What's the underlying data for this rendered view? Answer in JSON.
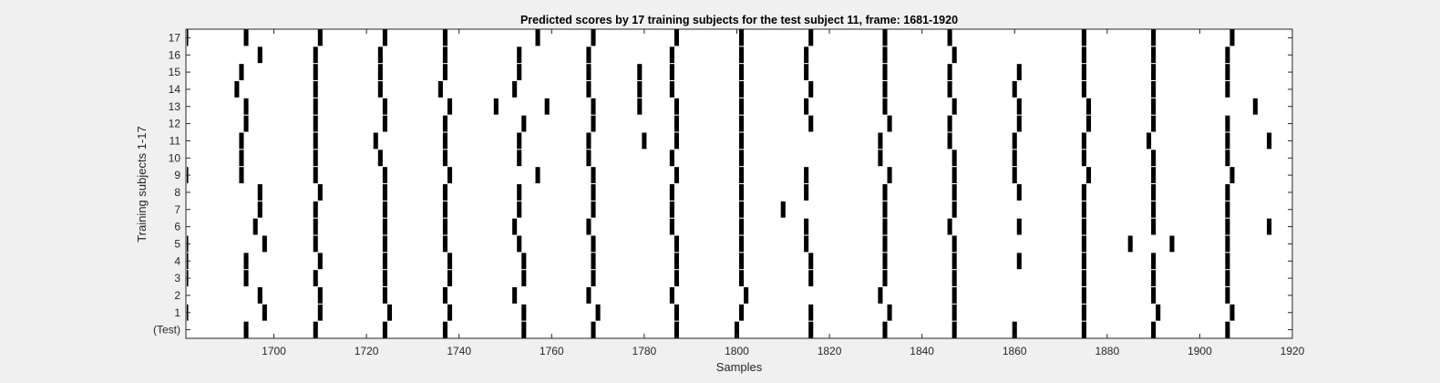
{
  "chart_data": {
    "type": "event-raster",
    "title": "Predicted scores by 17 training subjects for the test subject 11, frame: 1681-1920",
    "xlabel": "Samples",
    "ylabel": "Training subjects 1-17",
    "xlim": [
      1681,
      1920
    ],
    "xticks": [
      1700,
      1720,
      1740,
      1760,
      1780,
      1800,
      1820,
      1840,
      1860,
      1880,
      1900,
      1920
    ],
    "rows": [
      "(Test)",
      "1",
      "2",
      "3",
      "4",
      "5",
      "6",
      "7",
      "8",
      "9",
      "10",
      "11",
      "12",
      "13",
      "14",
      "15",
      "16",
      "17"
    ],
    "grid": false,
    "background": "#f0f0f0",
    "plot_background": "#ffffff",
    "mark_color": "#000000",
    "series": [
      {
        "row": "(Test)",
        "x": [
          1694,
          1709,
          1724,
          1737,
          1754,
          1769,
          1787,
          1800,
          1816,
          1832,
          1847,
          1860,
          1875,
          1890,
          1906
        ]
      },
      {
        "row": "1",
        "x": [
          1681,
          1698,
          1710,
          1725,
          1738,
          1754,
          1770,
          1787,
          1801,
          1816,
          1833,
          1847,
          1875,
          1891,
          1907
        ]
      },
      {
        "row": "2",
        "x": [
          1697,
          1710,
          1724,
          1737,
          1752,
          1768,
          1786,
          1802,
          1831,
          1847,
          1875,
          1890,
          1906
        ]
      },
      {
        "row": "3",
        "x": [
          1681,
          1694,
          1709,
          1724,
          1738,
          1754,
          1769,
          1787,
          1801,
          1816,
          1832,
          1847,
          1875,
          1890,
          1906
        ]
      },
      {
        "row": "4",
        "x": [
          1681,
          1694,
          1710,
          1724,
          1738,
          1754,
          1769,
          1787,
          1801,
          1816,
          1832,
          1847,
          1861,
          1875,
          1890,
          1906
        ]
      },
      {
        "row": "5",
        "x": [
          1681,
          1698,
          1709,
          1724,
          1737,
          1753,
          1769,
          1787,
          1801,
          1815,
          1832,
          1847,
          1875,
          1885,
          1894,
          1906
        ]
      },
      {
        "row": "6",
        "x": [
          1696,
          1709,
          1724,
          1737,
          1752,
          1768,
          1786,
          1801,
          1815,
          1832,
          1846,
          1861,
          1875,
          1890,
          1906,
          1915
        ]
      },
      {
        "row": "7",
        "x": [
          1697,
          1709,
          1724,
          1737,
          1753,
          1769,
          1786,
          1801,
          1810,
          1832,
          1847,
          1875,
          1890,
          1906
        ]
      },
      {
        "row": "8",
        "x": [
          1697,
          1710,
          1724,
          1737,
          1753,
          1769,
          1786,
          1801,
          1815,
          1832,
          1847,
          1861,
          1875,
          1890,
          1906
        ]
      },
      {
        "row": "9",
        "x": [
          1681,
          1693,
          1709,
          1724,
          1738,
          1757,
          1769,
          1787,
          1801,
          1815,
          1833,
          1847,
          1860,
          1876,
          1890,
          1907
        ]
      },
      {
        "row": "10",
        "x": [
          1693,
          1709,
          1723,
          1737,
          1753,
          1768,
          1786,
          1801,
          1831,
          1847,
          1860,
          1875,
          1890,
          1906
        ]
      },
      {
        "row": "11",
        "x": [
          1693,
          1709,
          1722,
          1737,
          1753,
          1768,
          1780,
          1787,
          1801,
          1831,
          1846,
          1860,
          1875,
          1889,
          1906,
          1915
        ]
      },
      {
        "row": "12",
        "x": [
          1694,
          1709,
          1724,
          1737,
          1754,
          1769,
          1787,
          1801,
          1816,
          1833,
          1846,
          1861,
          1876,
          1890,
          1906
        ]
      },
      {
        "row": "13",
        "x": [
          1694,
          1709,
          1724,
          1738,
          1748,
          1759,
          1769,
          1779,
          1787,
          1801,
          1815,
          1832,
          1847,
          1861,
          1876,
          1890,
          1912
        ]
      },
      {
        "row": "14",
        "x": [
          1692,
          1709,
          1723,
          1736,
          1752,
          1768,
          1779,
          1786,
          1801,
          1816,
          1832,
          1846,
          1860,
          1875,
          1890,
          1906
        ]
      },
      {
        "row": "15",
        "x": [
          1693,
          1709,
          1723,
          1737,
          1753,
          1768,
          1779,
          1786,
          1801,
          1815,
          1832,
          1846,
          1861,
          1875,
          1890,
          1906
        ]
      },
      {
        "row": "16",
        "x": [
          1697,
          1709,
          1723,
          1737,
          1753,
          1768,
          1786,
          1801,
          1815,
          1832,
          1847,
          1875,
          1890,
          1906
        ]
      },
      {
        "row": "17",
        "x": [
          1681,
          1694,
          1710,
          1724,
          1737,
          1757,
          1769,
          1787,
          1801,
          1816,
          1832,
          1846,
          1875,
          1890,
          1907
        ]
      }
    ]
  }
}
